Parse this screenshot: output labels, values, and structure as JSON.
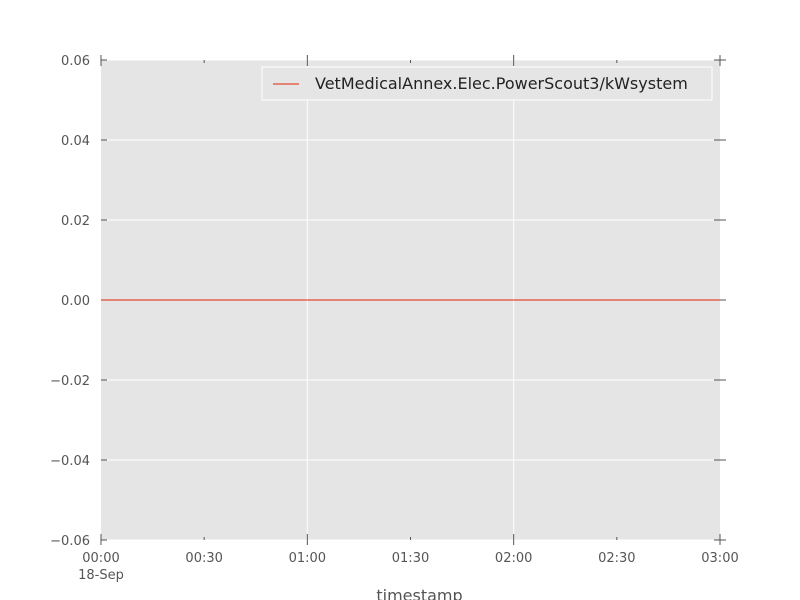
{
  "chart_data": {
    "type": "line",
    "xlabel": "timestamp",
    "ylabel": "",
    "x_ticks": [
      "00:00",
      "00:30",
      "01:00",
      "01:30",
      "02:00",
      "02:30",
      "03:00"
    ],
    "x_tick_date_label": "18-Sep",
    "x_range": [
      "00:00",
      "03:00"
    ],
    "y_ticks": [
      "0.06",
      "0.04",
      "0.02",
      "0.00",
      "−0.02",
      "−0.04",
      "−0.06"
    ],
    "ylim": [
      -0.06,
      0.06
    ],
    "grid": true,
    "legend_position": "top-right",
    "series": [
      {
        "name": "VetMedicalAnnex.Elec.PowerScout3/kWsystem",
        "color": "#e24a33",
        "x": [
          "00:00",
          "03:00"
        ],
        "values": [
          0.0,
          0.0
        ]
      }
    ],
    "colors": {
      "plot_background": "#e5e5e5",
      "grid": "#ffffff",
      "tick_text": "#555555"
    }
  }
}
